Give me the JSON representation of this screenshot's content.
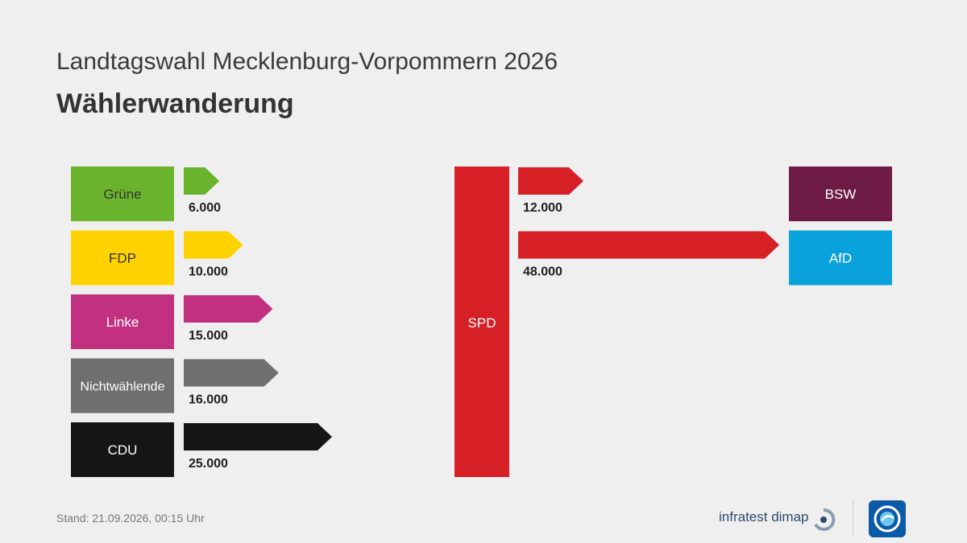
{
  "header": {
    "title": "Landtagswahl Mecklenburg-Vorpommern 2026",
    "subtitle": "Wählerwanderung"
  },
  "footer": {
    "stand": "Stand:  21.09.2026, 00:15 Uhr",
    "brand": "infratest dimap"
  },
  "icons": {
    "brand_logo": "infratest-dimap-logo-icon",
    "broadcaster_logo": "ard-logo-icon"
  },
  "chart_data": {
    "type": "bar",
    "title": "Wählerwanderung",
    "center_party": {
      "name": "SPD",
      "color": "#d71f26"
    },
    "inflows": [
      {
        "party": "Grüne",
        "value": 6000,
        "label": "6.000",
        "color": "#6ab42d",
        "text_color": "#333333"
      },
      {
        "party": "FDP",
        "value": 10000,
        "label": "10.000",
        "color": "#ffd200",
        "text_color": "#333333"
      },
      {
        "party": "Linke",
        "value": 15000,
        "label": "15.000",
        "color": "#c2317f",
        "text_color": "#ffffff"
      },
      {
        "party": "Nichtwählende",
        "value": 16000,
        "label": "16.000",
        "color": "#6f6f6f",
        "text_color": "#ffffff"
      },
      {
        "party": "CDU",
        "value": 25000,
        "label": "25.000",
        "color": "#151515",
        "text_color": "#ffffff"
      }
    ],
    "outflows": [
      {
        "party": "BSW",
        "value": 12000,
        "label": "12.000",
        "color": "#6d1a45",
        "text_color": "#ffffff",
        "arrow_color": "#d71f26"
      },
      {
        "party": "AfD",
        "value": 48000,
        "label": "48.000",
        "color": "#0aa2dc",
        "text_color": "#ffffff",
        "arrow_color": "#d71f26"
      }
    ]
  }
}
